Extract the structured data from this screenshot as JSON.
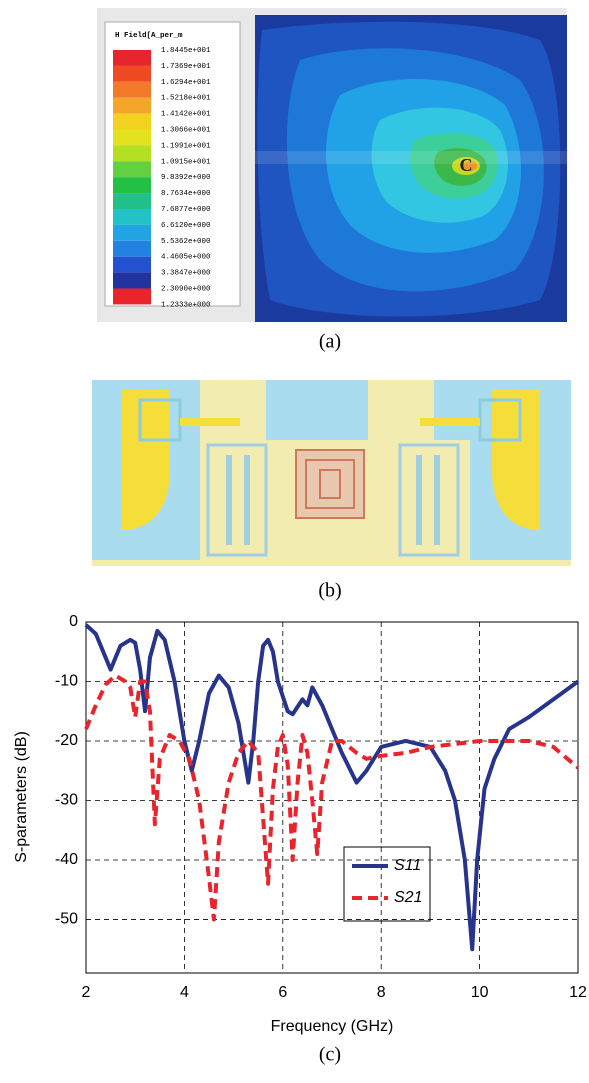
{
  "field_plot": {
    "legend_title": "H Field[A_per_m",
    "legend_labels": [
      "1.8445e+001",
      "1.7369e+001",
      "1.6294e+001",
      "1.5218e+001",
      "1.4142e+001",
      "1.3066e+001",
      "1.1991e+001",
      "1.0915e+001",
      "9.8392e+000",
      "8.7634e+000",
      "7.6877e+000",
      "6.6120e+000",
      "5.5362e+000",
      "4.4605e+000",
      "3.3847e+000",
      "2.3090e+000",
      "1.2333e+000"
    ],
    "marker": "C",
    "caption": "(a)"
  },
  "layout": {
    "caption": "(b)"
  },
  "chart_data": {
    "type": "line",
    "caption": "(c)",
    "x_label": "Frequency (GHz)",
    "y_label": "S-parameters (dB)",
    "xlim": [
      2,
      12
    ],
    "xticks": [
      2,
      4,
      6,
      8,
      10,
      12
    ],
    "ylim": [
      -59,
      0
    ],
    "yticks": [
      0,
      -10,
      -20,
      -30,
      -40,
      -50
    ],
    "grid": true,
    "series": [
      {
        "name": "S11",
        "color": "#27348b",
        "line_style": "solid",
        "x": [
          2.0,
          2.2,
          2.4,
          2.5,
          2.7,
          2.9,
          3.0,
          3.1,
          3.2,
          3.3,
          3.45,
          3.6,
          3.8,
          4.0,
          4.15,
          4.3,
          4.5,
          4.7,
          4.9,
          5.1,
          5.3,
          5.4,
          5.5,
          5.6,
          5.7,
          5.8,
          5.9,
          6.1,
          6.2,
          6.4,
          6.5,
          6.6,
          6.8,
          7.0,
          7.2,
          7.5,
          7.7,
          8.0,
          8.5,
          9.0,
          9.3,
          9.5,
          9.7,
          9.85,
          9.95,
          10.1,
          10.3,
          10.6,
          11.0,
          11.5,
          12.0
        ],
        "values": [
          -0.5,
          -2,
          -6,
          -8,
          -4,
          -3,
          -3.5,
          -8,
          -15,
          -6,
          -1.5,
          -3,
          -10,
          -20,
          -25,
          -20,
          -12,
          -9,
          -11,
          -17,
          -27,
          -20,
          -10,
          -4,
          -3,
          -5,
          -10,
          -15,
          -15.5,
          -13,
          -14,
          -11,
          -14,
          -18,
          -22,
          -27,
          -25,
          -21,
          -20,
          -21,
          -25,
          -30,
          -40,
          -55,
          -40,
          -28,
          -23,
          -18,
          -16,
          -13,
          -10
        ]
      },
      {
        "name": "S21",
        "color": "#e8242c",
        "line_style": "dashed",
        "x": [
          2.0,
          2.2,
          2.4,
          2.6,
          2.8,
          2.9,
          3.0,
          3.1,
          3.2,
          3.3,
          3.4,
          3.5,
          3.7,
          3.9,
          4.1,
          4.3,
          4.5,
          4.6,
          4.7,
          4.9,
          5.1,
          5.3,
          5.5,
          5.6,
          5.7,
          5.8,
          5.9,
          6.0,
          6.1,
          6.2,
          6.3,
          6.4,
          6.5,
          6.6,
          6.7,
          6.8,
          7.0,
          7.2,
          7.5,
          7.7,
          8.0,
          8.5,
          9.0,
          9.5,
          10.0,
          10.5,
          11.0,
          11.5,
          12.0
        ],
        "values": [
          -18,
          -14,
          -10.5,
          -9,
          -10,
          -11,
          -16,
          -10,
          -10,
          -15,
          -34,
          -23,
          -19,
          -20,
          -23,
          -30,
          -43,
          -50,
          -37,
          -27,
          -22,
          -20,
          -22,
          -33,
          -44,
          -28,
          -21,
          -19,
          -24,
          -40,
          -27,
          -19,
          -22,
          -30,
          -39,
          -27,
          -20,
          -20,
          -22,
          -23,
          -22.5,
          -22,
          -21,
          -20.5,
          -20,
          -20,
          -20,
          -21,
          -24.5
        ]
      }
    ]
  }
}
